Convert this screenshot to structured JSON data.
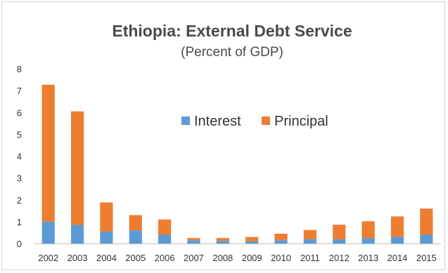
{
  "chart_data": {
    "type": "bar",
    "stacked": true,
    "title": "Ethiopia: External Debt Service",
    "subtitle": "(Percent of GDP)",
    "xlabel": "",
    "ylabel": "",
    "categories": [
      "2002",
      "2003",
      "2004",
      "2005",
      "2006",
      "2007",
      "2008",
      "2009",
      "2010",
      "2011",
      "2012",
      "2013",
      "2014",
      "2015"
    ],
    "series": [
      {
        "name": "Interest",
        "color": "#5B9BD5",
        "values": [
          1.0,
          0.85,
          0.55,
          0.6,
          0.4,
          0.15,
          0.12,
          0.1,
          0.15,
          0.2,
          0.2,
          0.25,
          0.3,
          0.4
        ]
      },
      {
        "name": "Principal",
        "color": "#ED7D31",
        "values": [
          6.27,
          5.2,
          1.33,
          0.7,
          0.7,
          0.1,
          0.13,
          0.2,
          0.3,
          0.42,
          0.66,
          0.77,
          0.94,
          1.2
        ]
      }
    ],
    "yticks": [
      "0",
      "1",
      "2",
      "3",
      "4",
      "5",
      "6",
      "7",
      "8"
    ],
    "ylim": [
      0,
      8
    ],
    "legend_position": "center",
    "grid": false
  }
}
